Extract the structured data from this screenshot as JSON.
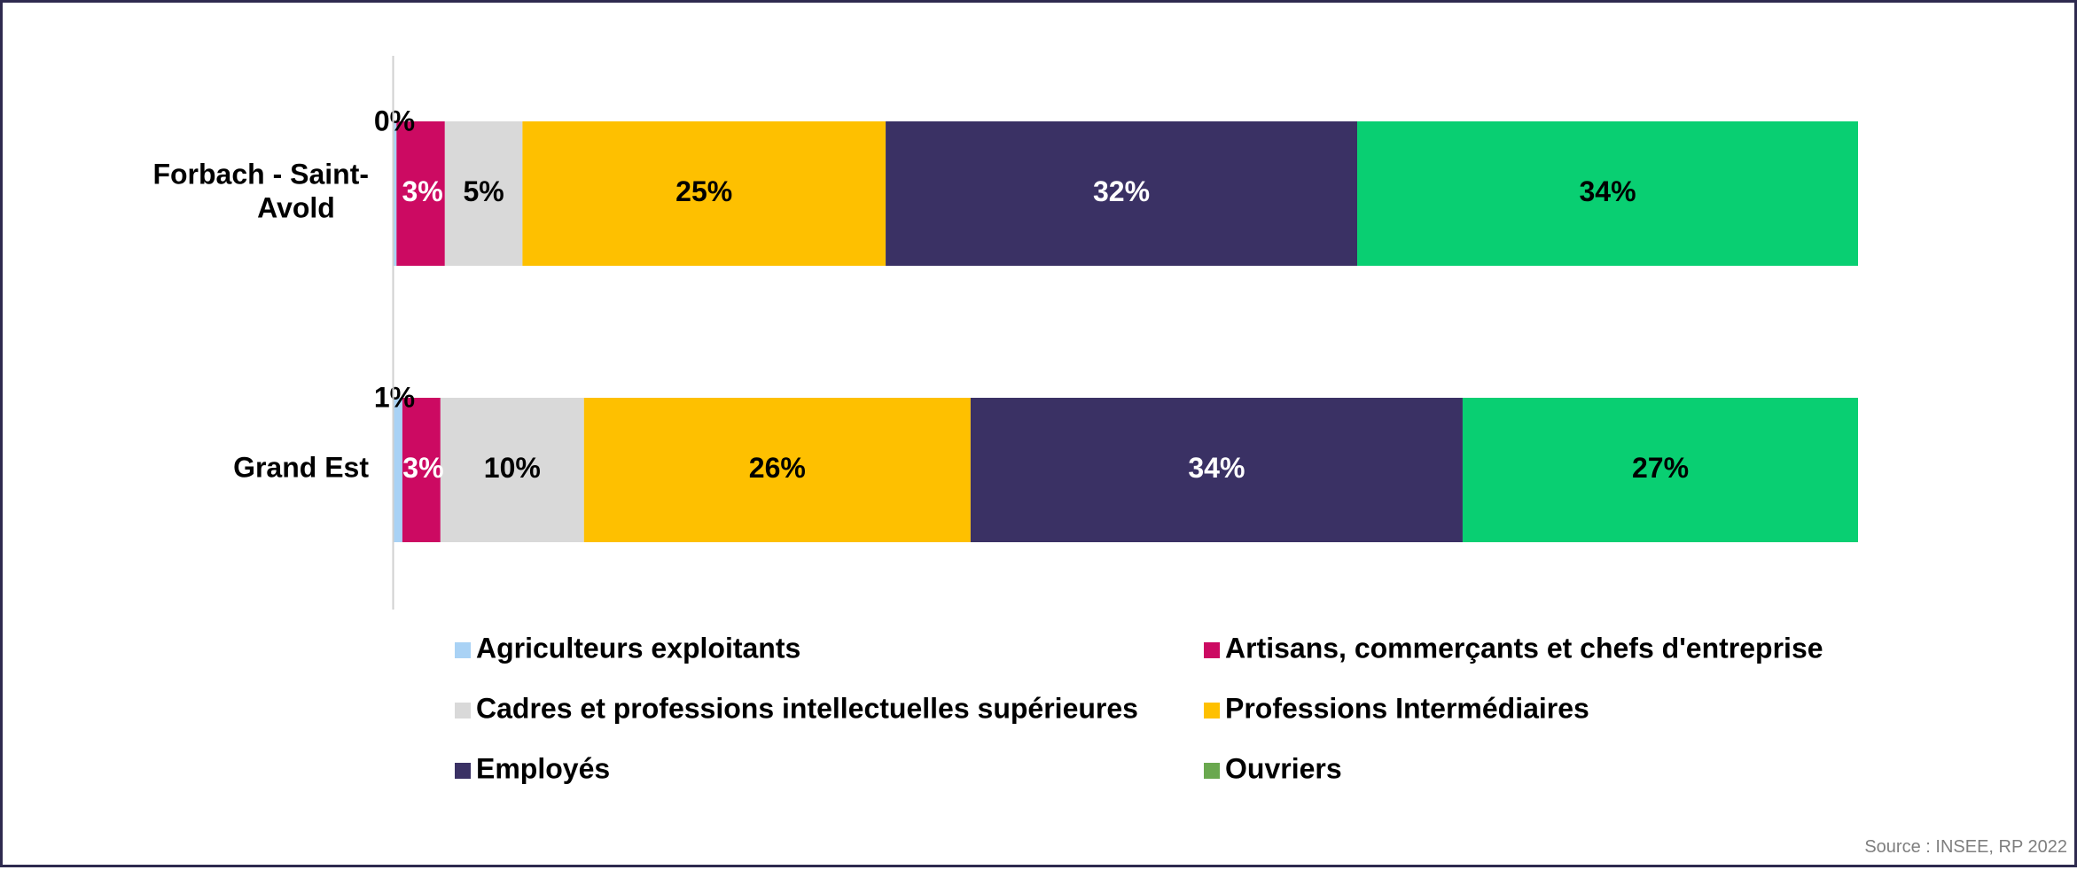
{
  "chart_data": {
    "type": "bar",
    "orientation": "horizontal",
    "stacked": true,
    "categories": [
      "Forbach - Saint-\nAvold",
      "Grand Est"
    ],
    "series": [
      {
        "name": "Agriculteurs exploitants",
        "color": "#a9d2f5",
        "values": [
          0.2,
          0.6
        ],
        "labels": [
          "0%",
          "1%"
        ],
        "label_color": "#000000"
      },
      {
        "name": "Artisans, commerçants et chefs d'entreprise",
        "color": "#cc0a62",
        "values": [
          3.3,
          2.6
        ],
        "labels": [
          "3%",
          "3%"
        ],
        "label_color": "#ffffff"
      },
      {
        "name": "Cadres et professions intellectuelles supérieures",
        "color": "#d9d9d9",
        "values": [
          5.3,
          9.8
        ],
        "labels": [
          "5%",
          "10%"
        ],
        "label_color": "#000000"
      },
      {
        "name": "Professions Intermédiaires",
        "color": "#fec000",
        "values": [
          24.8,
          26.4
        ],
        "labels": [
          "25%",
          "26%"
        ],
        "label_color": "#000000"
      },
      {
        "name": "Employés",
        "color": "#3a3164",
        "values": [
          32.2,
          33.6
        ],
        "labels": [
          "32%",
          "34%"
        ],
        "label_color": "#ffffff"
      },
      {
        "name": "Ouvriers",
        "color": "#09cf72",
        "values": [
          34.2,
          27.0
        ],
        "labels": [
          "34%",
          "27%"
        ],
        "label_color": "#000000"
      }
    ],
    "legend": [
      {
        "name": "Agriculteurs exploitants",
        "color": "#a9d2f5"
      },
      {
        "name": "Artisans, commerçants et chefs d'entreprise",
        "color": "#cc0a62"
      },
      {
        "name": "Cadres et professions intellectuelles supérieures",
        "color": "#d9d9d9"
      },
      {
        "name": "Professions Intermédiaires",
        "color": "#fec000"
      },
      {
        "name": "Employés",
        "color": "#3a3164"
      },
      {
        "name": "Ouvriers",
        "color": "#6aa84f"
      }
    ],
    "xlim": [
      0,
      100
    ],
    "legend_position": "bottom",
    "grid": false
  },
  "source": "Source : INSEE, RP 2022"
}
